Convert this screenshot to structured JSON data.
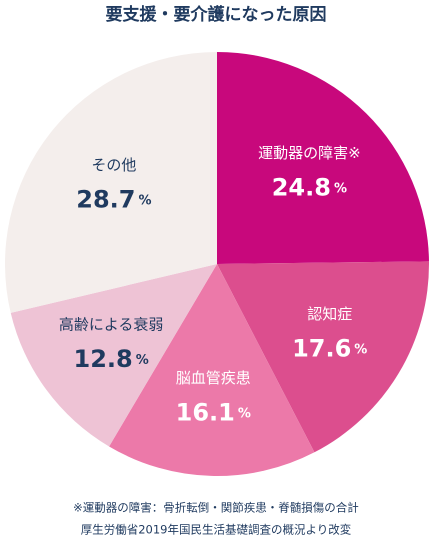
{
  "chart_data": {
    "type": "pie",
    "title": "要支援・要介護になった原因",
    "categories": [
      "運動器の障害※",
      "認知症",
      "脳血管疾患",
      "高齢による衰弱",
      "その他"
    ],
    "values": [
      24.8,
      17.6,
      16.1,
      12.8,
      28.7
    ],
    "value_labels": [
      "24.8%",
      "17.6%",
      "16.1%",
      "12.8%",
      "28.7%"
    ],
    "colors": [
      "#c8087c",
      "#dc4e8e",
      "#ec79a9",
      "#eec3d5",
      "#f4eeec"
    ],
    "label_colors": [
      "#ffffff",
      "#ffffff",
      "#ffffff",
      "#1f3a5f",
      "#1f3a5f"
    ],
    "notes": [
      "※運動器の障害：骨折転倒・関節疾患・脊髄損傷の合計",
      "厚生労働省2019年国民生活基礎調査の概況より改変"
    ]
  }
}
